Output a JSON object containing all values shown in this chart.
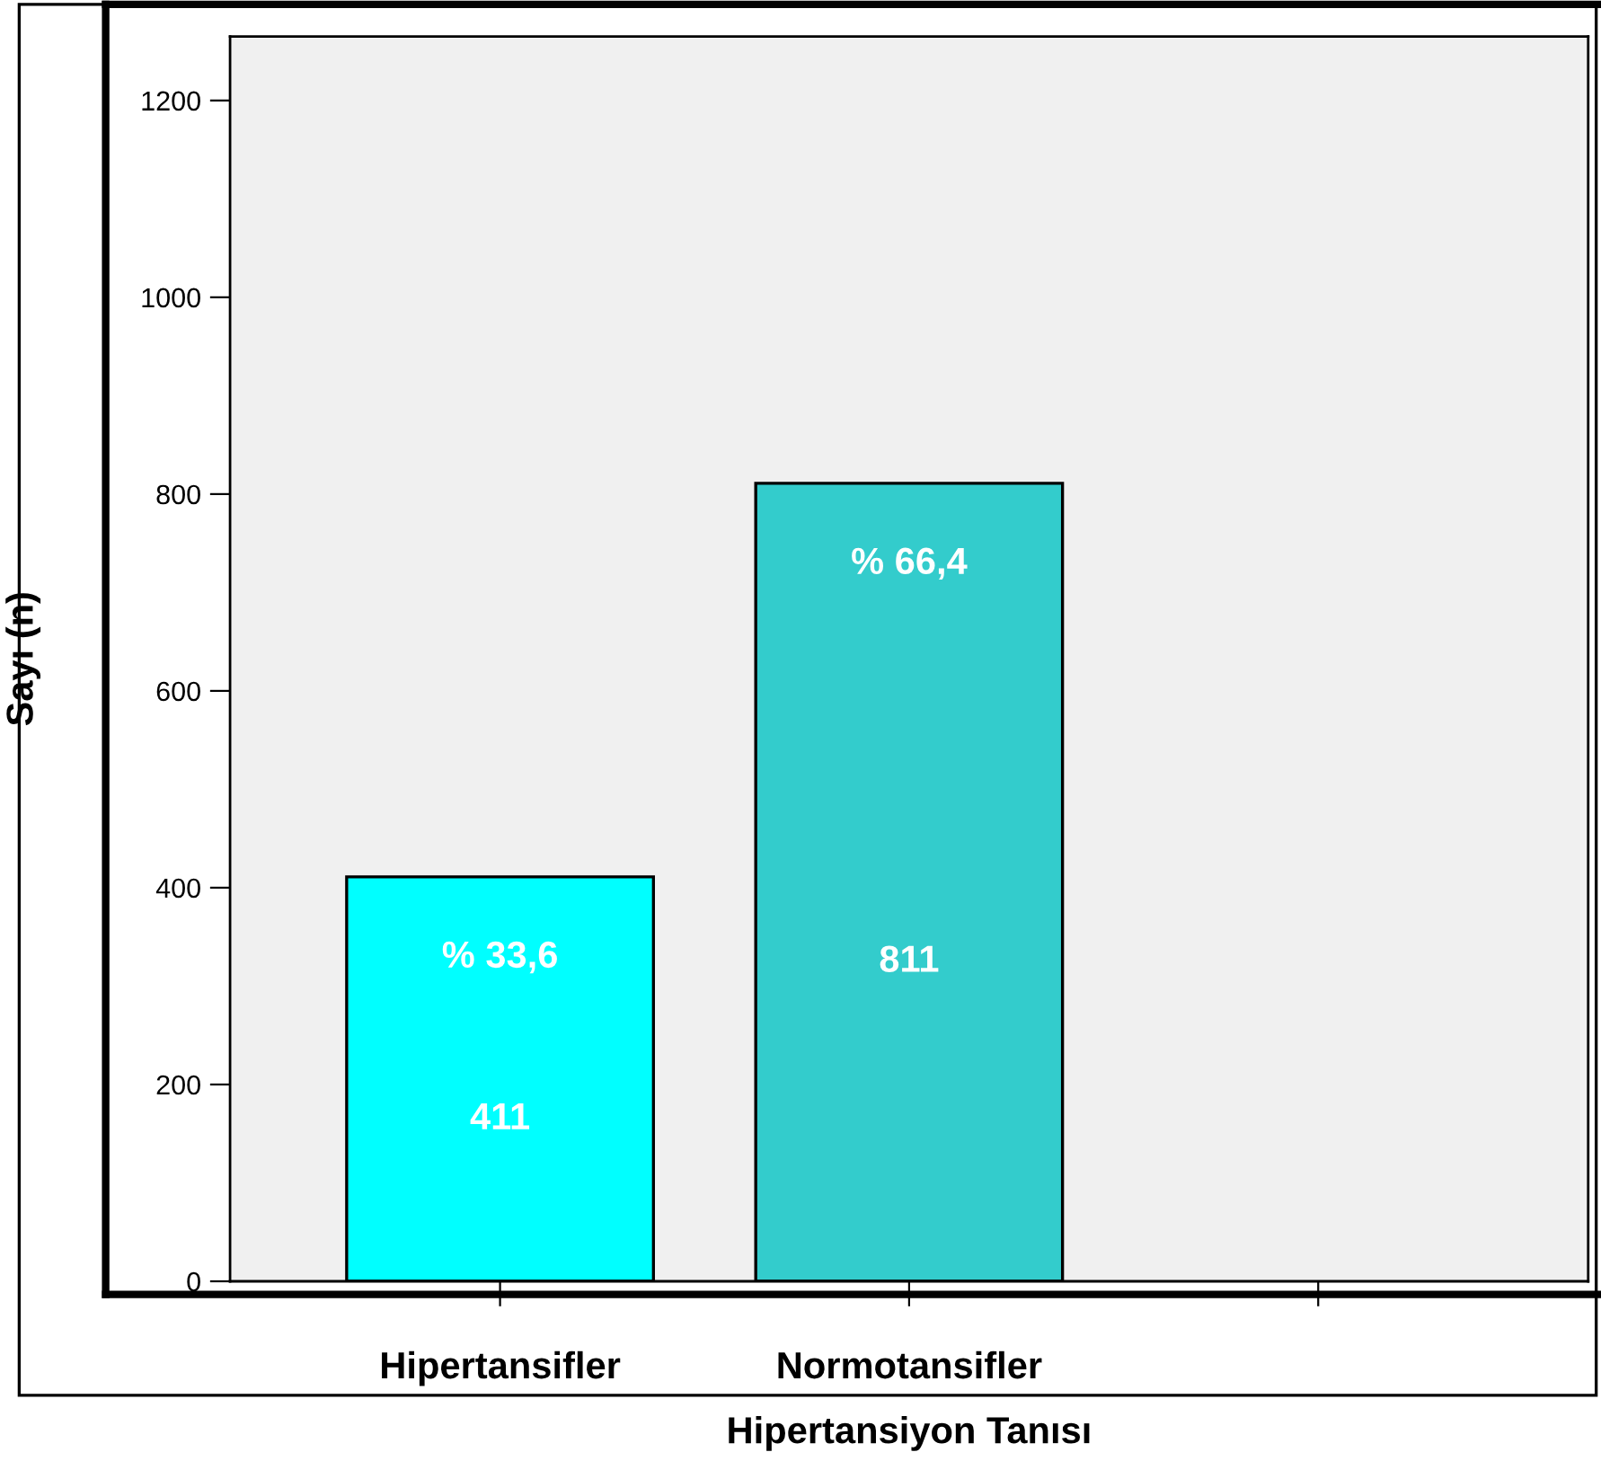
{
  "chart_data": {
    "type": "bar",
    "xlabel": "Hipertansiyon Tanısı",
    "ylabel": "Sayı (n)",
    "categories": [
      "Hipertansifler",
      "Normotansifler",
      null
    ],
    "values": [
      411,
      811,
      null
    ],
    "colors": [
      "#00ffff",
      "#33cccc",
      "#33cccc"
    ],
    "value_labels": [
      "411",
      "811",
      null
    ],
    "annotations": [
      "% 33,6",
      "% 66,4"
    ],
    "ylim": [
      0,
      1265
    ],
    "yticks": [
      0,
      200,
      400,
      600,
      800,
      1000,
      1200
    ],
    "grid": false,
    "legend": false
  }
}
